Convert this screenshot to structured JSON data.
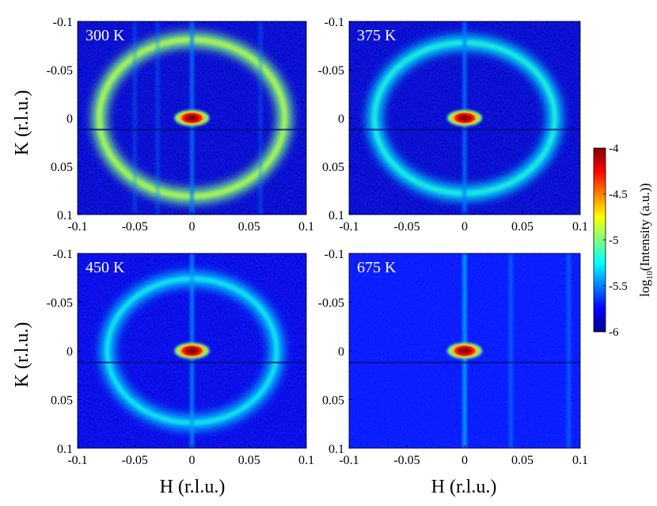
{
  "figure": {
    "ylabel": "K (r.l.u.)",
    "xlabel": "H (r.l.u.)",
    "colorbar_label": "log10(Intensity (a.u.))",
    "colorbar_label_base": "log",
    "colorbar_label_sub": "10",
    "colorbar_label_rest": "(Intensity (a.u.))",
    "colorbar_ticks": [
      "-4",
      "-4.5",
      "-5",
      "-5.5",
      "-6"
    ],
    "colorbar_range": [
      -6,
      -4
    ],
    "colormap": "jet",
    "x_tick_labels": [
      "-0.1",
      "-0.05",
      "0",
      "0.05",
      "0.1"
    ],
    "y_tick_labels": [
      "-0.1",
      "-0.05",
      "0",
      "0.05",
      "0.1"
    ]
  },
  "chart_data": [
    {
      "type": "heatmap",
      "title": "300 K",
      "temperature_label": "300 K",
      "xlim": [
        -0.1,
        0.1
      ],
      "ylim": [
        -0.1,
        0.1
      ],
      "y_inverted": true,
      "ring_radius": 0.081,
      "ring_peak_log_intensity": -5.0,
      "background_log_intensity": -5.85,
      "center_peak_log_intensity": -4.0,
      "stripe_x_positions": [
        -0.05,
        -0.03,
        0,
        0.06
      ]
    },
    {
      "type": "heatmap",
      "title": "375 K",
      "temperature_label": "375 K",
      "xlim": [
        -0.1,
        0.1
      ],
      "ylim": [
        -0.1,
        0.1
      ],
      "y_inverted": true,
      "ring_radius": 0.078,
      "ring_peak_log_intensity": -5.3,
      "background_log_intensity": -5.85,
      "center_peak_log_intensity": -4.0,
      "stripe_x_positions": [
        0
      ]
    },
    {
      "type": "heatmap",
      "title": "450 K",
      "temperature_label": "450 K",
      "xlim": [
        -0.1,
        0.1
      ],
      "ylim": [
        -0.1,
        0.1
      ],
      "y_inverted": true,
      "ring_radius": 0.074,
      "ring_peak_log_intensity": -5.35,
      "background_log_intensity": -5.8,
      "center_peak_log_intensity": -4.0,
      "stripe_x_positions": [
        0
      ]
    },
    {
      "type": "heatmap",
      "title": "675 K",
      "temperature_label": "675 K",
      "xlim": [
        -0.1,
        0.1
      ],
      "ylim": [
        -0.1,
        0.1
      ],
      "y_inverted": true,
      "ring_radius": null,
      "ring_peak_log_intensity": null,
      "background_log_intensity": -5.72,
      "center_peak_log_intensity": -4.0,
      "stripe_x_positions": [
        0,
        0.04,
        0.09
      ]
    }
  ]
}
